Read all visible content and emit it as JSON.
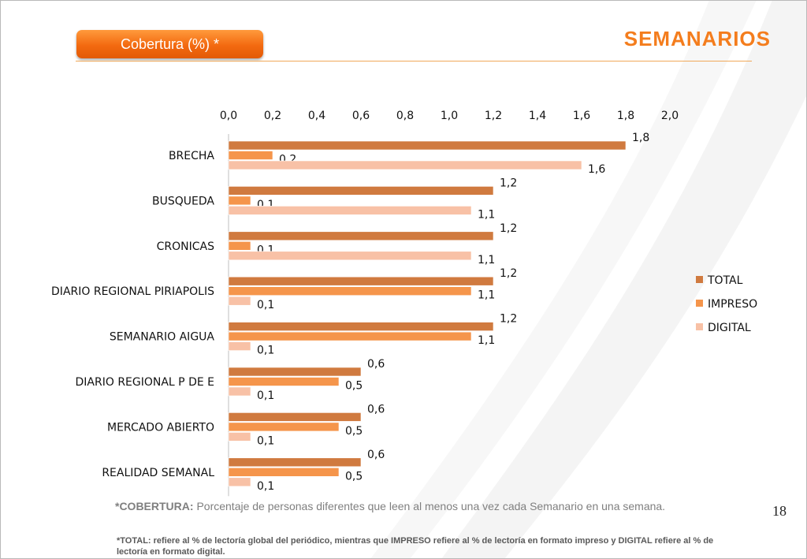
{
  "header": {
    "pill_label": "Cobertura (%) *",
    "title": "SEMANARIOS"
  },
  "colors": {
    "accent": "#f47d1d",
    "total": "#d07a3f",
    "impreso": "#f5954b",
    "digital": "#f8c1a6"
  },
  "chart_data": {
    "type": "bar",
    "orientation": "horizontal",
    "categories": [
      "BRECHA",
      "BUSQUEDA",
      "CRONICAS",
      "DIARIO REGIONAL PIRIAPOLIS",
      "SEMANARIO AIGUA",
      "DIARIO REGIONAL P DE E",
      "MERCADO ABIERTO",
      "REALIDAD SEMANAL"
    ],
    "series": [
      {
        "name": "TOTAL",
        "values": [
          1.8,
          1.2,
          1.2,
          1.2,
          1.2,
          0.6,
          0.6,
          0.6
        ],
        "labels": [
          "1,8",
          "1,2",
          "1,2",
          "1,2",
          "1,2",
          "0,6",
          "0,6",
          "0,6"
        ]
      },
      {
        "name": "IMPRESO",
        "values": [
          0.2,
          0.1,
          0.1,
          1.1,
          1.1,
          0.5,
          0.5,
          0.5
        ],
        "labels": [
          "0,2",
          "0,1",
          "0,1",
          "1,1",
          "1,1",
          "0,5",
          "0,5",
          "0,5"
        ]
      },
      {
        "name": "DIGITAL",
        "values": [
          1.6,
          1.1,
          1.1,
          0.1,
          0.1,
          0.1,
          0.1,
          0.1
        ],
        "labels": [
          "1,6",
          "1,1",
          "1,1",
          "0,1",
          "0,1",
          "0,1",
          "0,1",
          "0,1"
        ]
      }
    ],
    "xlim": [
      0,
      2.0
    ],
    "xticks": [
      "0,0",
      "0,2",
      "0,4",
      "0,6",
      "0,8",
      "1,0",
      "1,2",
      "1,4",
      "1,6",
      "1,8",
      "2,0"
    ],
    "axis_position": "top",
    "grid": false,
    "legend": "right"
  },
  "footnotes": {
    "cobertura_lead": "*COBERTURA:",
    "cobertura_text": " Porcentaje de personas diferentes que leen al menos una vez cada Semanario en una semana.",
    "total_note": "*TOTAL: refiere al % de lectoría global del periódico, mientras que IMPRESO refiere al % de lectoría en formato impreso y DIGITAL refiere al % de lectoría en formato digital."
  },
  "page_number": "18"
}
